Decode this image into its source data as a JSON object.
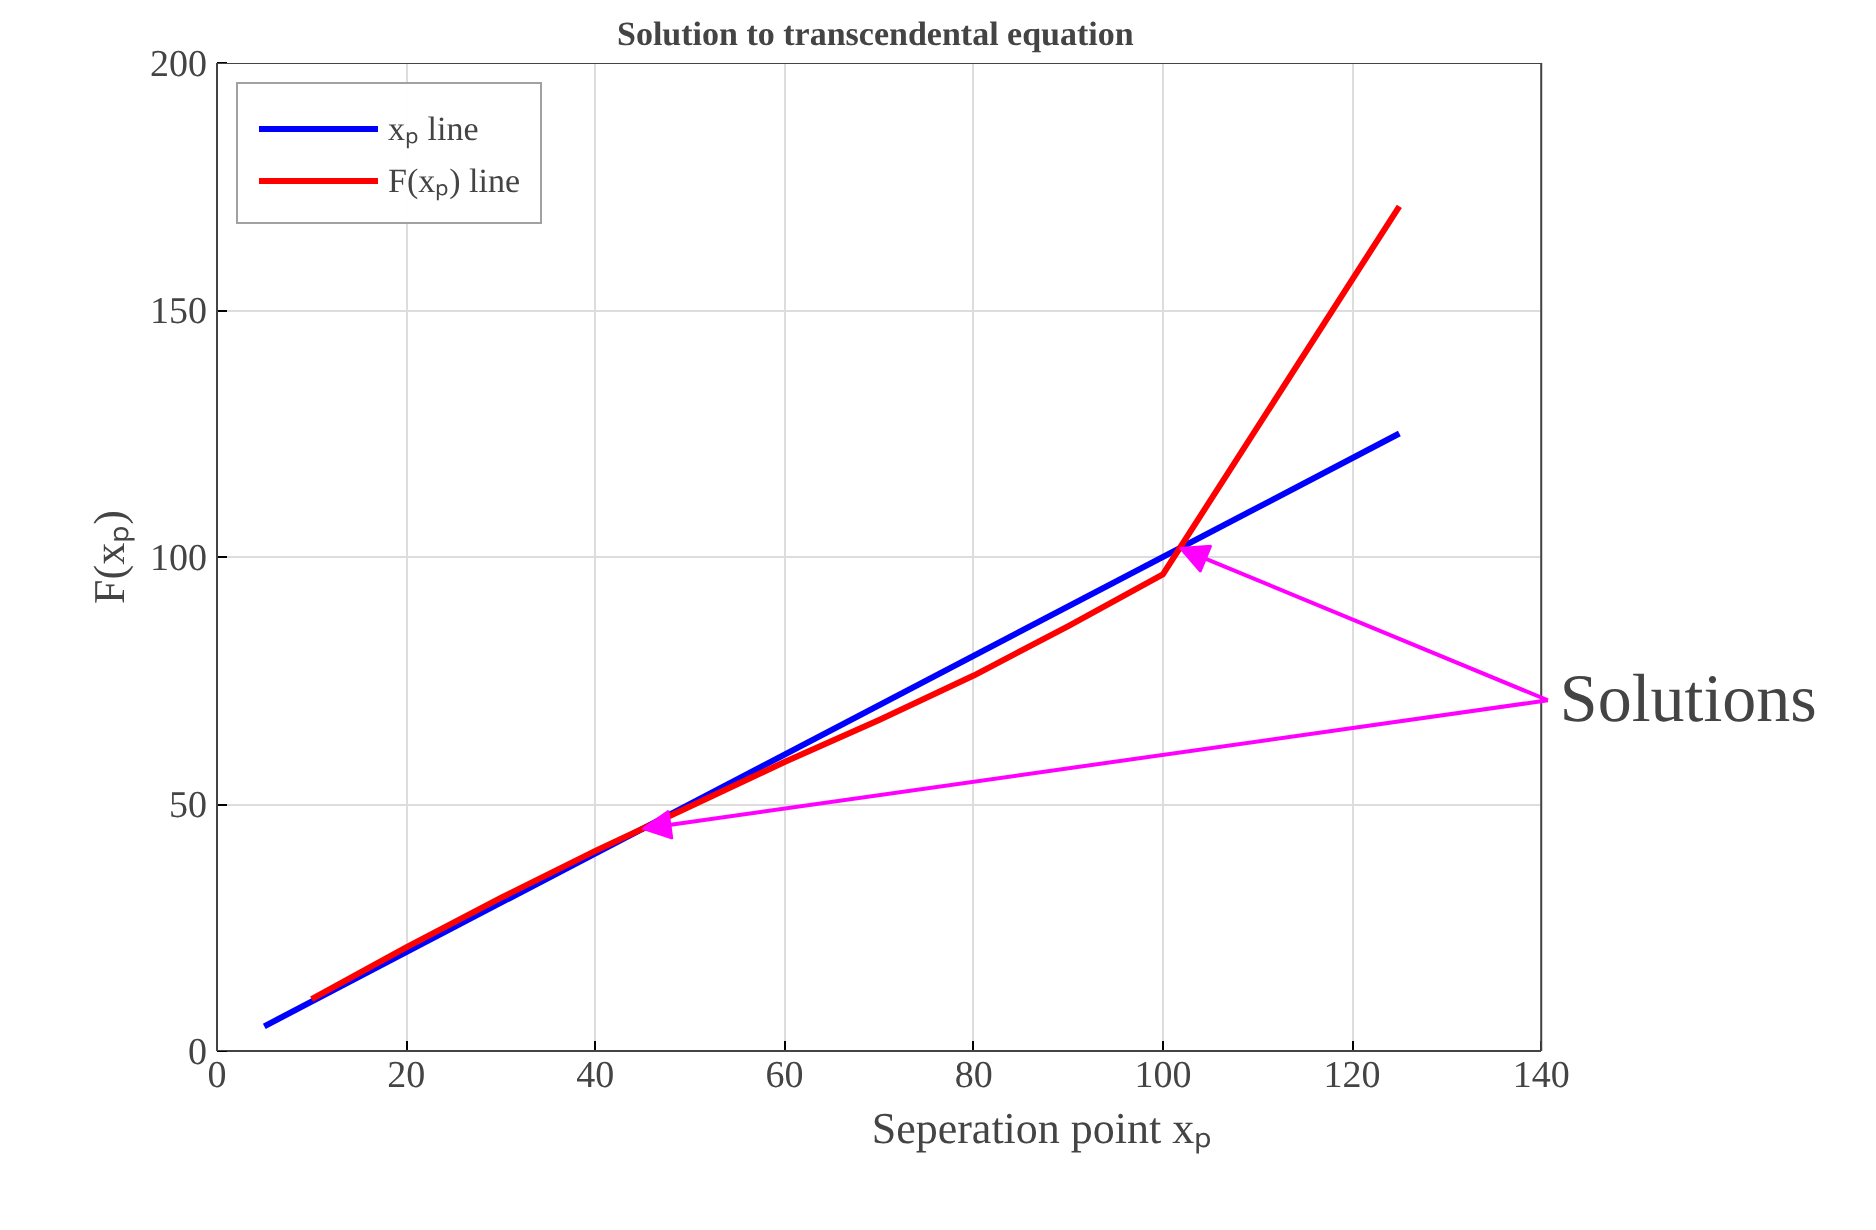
{
  "chart_data": {
    "type": "line",
    "title": "Solution to transcendental equation",
    "xlabel": "Seperation point xₚ",
    "ylabel": "F(xₚ)",
    "xlim": [
      0,
      140
    ],
    "ylim": [
      0,
      200
    ],
    "xticks": [
      0,
      20,
      40,
      60,
      80,
      100,
      120,
      140
    ],
    "yticks": [
      0,
      50,
      100,
      150,
      200
    ],
    "grid": true,
    "legend": "top left",
    "series": [
      {
        "name": "xₚ line",
        "color": "#0000ff",
        "x": [
          5,
          125
        ],
        "values": [
          5,
          125
        ]
      },
      {
        "name": "F(xₚ) line",
        "color": "#ff0000",
        "x": [
          10,
          20,
          30,
          40,
          50,
          60,
          70,
          80,
          90,
          100,
          125
        ],
        "values": [
          10.5,
          21,
          31,
          40.5,
          49.5,
          58.5,
          67,
          76,
          86,
          96.5,
          171
        ]
      }
    ],
    "annotations": [
      {
        "text": "Solutions",
        "x": 101.8,
        "y": 101.8
      }
    ]
  }
}
